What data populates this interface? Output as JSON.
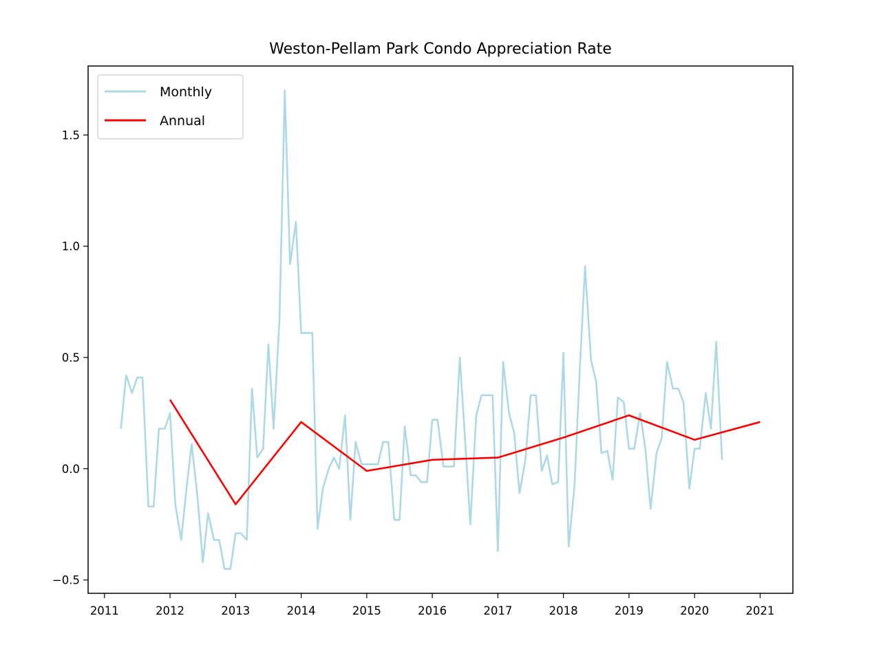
{
  "chart_data": {
    "type": "line",
    "title": "Weston-Pellam Park Condo Appreciation Rate",
    "xlabel": "",
    "ylabel": "",
    "xlim": [
      2010.75,
      2021.5
    ],
    "ylim": [
      -0.56,
      1.81
    ],
    "x_ticks": [
      "2011",
      "2012",
      "2013",
      "2014",
      "2015",
      "2016",
      "2017",
      "2018",
      "2019",
      "2020",
      "2021"
    ],
    "y_ticks": [
      "−0.5",
      "0.0",
      "0.5",
      "1.0",
      "1.5"
    ],
    "grid": false,
    "legend_position": "top-left",
    "series": [
      {
        "name": "Monthly",
        "color": "#add8e6",
        "points": [
          [
            2011.25,
            0.18
          ],
          [
            2011.33,
            0.42
          ],
          [
            2011.42,
            0.34
          ],
          [
            2011.5,
            0.41
          ],
          [
            2011.58,
            0.41
          ],
          [
            2011.67,
            -0.17
          ],
          [
            2011.75,
            -0.17
          ],
          [
            2011.83,
            0.18
          ],
          [
            2011.92,
            0.18
          ],
          [
            2012.0,
            0.25
          ],
          [
            2012.08,
            -0.16
          ],
          [
            2012.17,
            -0.32
          ],
          [
            2012.25,
            -0.09
          ],
          [
            2012.33,
            0.11
          ],
          [
            2012.42,
            -0.13
          ],
          [
            2012.5,
            -0.42
          ],
          [
            2012.58,
            -0.2
          ],
          [
            2012.67,
            -0.32
          ],
          [
            2012.75,
            -0.32
          ],
          [
            2012.83,
            -0.45
          ],
          [
            2012.92,
            -0.45
          ],
          [
            2013.0,
            -0.29
          ],
          [
            2013.08,
            -0.29
          ],
          [
            2013.17,
            -0.32
          ],
          [
            2013.25,
            0.36
          ],
          [
            2013.33,
            0.05
          ],
          [
            2013.42,
            0.09
          ],
          [
            2013.5,
            0.56
          ],
          [
            2013.58,
            0.18
          ],
          [
            2013.67,
            0.68
          ],
          [
            2013.75,
            1.7
          ],
          [
            2013.83,
            0.92
          ],
          [
            2013.92,
            1.11
          ],
          [
            2014.0,
            0.61
          ],
          [
            2014.08,
            0.61
          ],
          [
            2014.17,
            0.61
          ],
          [
            2014.25,
            -0.27
          ],
          [
            2014.33,
            -0.09
          ],
          [
            2014.42,
            0.0
          ],
          [
            2014.5,
            0.05
          ],
          [
            2014.58,
            0.0
          ],
          [
            2014.67,
            0.24
          ],
          [
            2014.75,
            -0.23
          ],
          [
            2014.83,
            0.12
          ],
          [
            2014.92,
            0.02
          ],
          [
            2015.0,
            0.02
          ],
          [
            2015.08,
            0.02
          ],
          [
            2015.17,
            0.02
          ],
          [
            2015.25,
            0.12
          ],
          [
            2015.33,
            0.12
          ],
          [
            2015.42,
            -0.23
          ],
          [
            2015.5,
            -0.23
          ],
          [
            2015.58,
            0.19
          ],
          [
            2015.67,
            -0.03
          ],
          [
            2015.75,
            -0.03
          ],
          [
            2015.83,
            -0.06
          ],
          [
            2015.92,
            -0.06
          ],
          [
            2016.0,
            0.22
          ],
          [
            2016.08,
            0.22
          ],
          [
            2016.17,
            0.01
          ],
          [
            2016.25,
            0.01
          ],
          [
            2016.33,
            0.01
          ],
          [
            2016.42,
            0.5
          ],
          [
            2016.5,
            0.13
          ],
          [
            2016.58,
            -0.25
          ],
          [
            2016.67,
            0.24
          ],
          [
            2016.75,
            0.33
          ],
          [
            2016.83,
            0.33
          ],
          [
            2016.92,
            0.33
          ],
          [
            2017.0,
            -0.37
          ],
          [
            2017.08,
            0.48
          ],
          [
            2017.17,
            0.25
          ],
          [
            2017.25,
            0.16
          ],
          [
            2017.33,
            -0.11
          ],
          [
            2017.42,
            0.04
          ],
          [
            2017.5,
            0.33
          ],
          [
            2017.58,
            0.33
          ],
          [
            2017.67,
            -0.01
          ],
          [
            2017.75,
            0.06
          ],
          [
            2017.83,
            -0.07
          ],
          [
            2017.92,
            -0.06
          ],
          [
            2018.0,
            0.52
          ],
          [
            2018.08,
            -0.35
          ],
          [
            2018.17,
            -0.07
          ],
          [
            2018.25,
            0.45
          ],
          [
            2018.33,
            0.91
          ],
          [
            2018.42,
            0.49
          ],
          [
            2018.5,
            0.39
          ],
          [
            2018.58,
            0.07
          ],
          [
            2018.67,
            0.08
          ],
          [
            2018.75,
            -0.05
          ],
          [
            2018.83,
            0.32
          ],
          [
            2018.92,
            0.3
          ],
          [
            2019.0,
            0.09
          ],
          [
            2019.08,
            0.09
          ],
          [
            2019.17,
            0.25
          ],
          [
            2019.25,
            0.09
          ],
          [
            2019.33,
            -0.18
          ],
          [
            2019.42,
            0.07
          ],
          [
            2019.5,
            0.14
          ],
          [
            2019.58,
            0.48
          ],
          [
            2019.67,
            0.36
          ],
          [
            2019.75,
            0.36
          ],
          [
            2019.83,
            0.3
          ],
          [
            2019.92,
            -0.09
          ],
          [
            2020.0,
            0.09
          ],
          [
            2020.08,
            0.09
          ],
          [
            2020.17,
            0.34
          ],
          [
            2020.25,
            0.18
          ],
          [
            2020.33,
            0.57
          ],
          [
            2020.42,
            0.04
          ]
        ]
      },
      {
        "name": "Annual",
        "color": "#ff0000",
        "points": [
          [
            2012.0,
            0.31
          ],
          [
            2013.0,
            -0.16
          ],
          [
            2014.0,
            0.21
          ],
          [
            2015.0,
            -0.01
          ],
          [
            2016.0,
            0.04
          ],
          [
            2017.0,
            0.05
          ],
          [
            2018.0,
            0.14
          ],
          [
            2019.0,
            0.24
          ],
          [
            2020.0,
            0.13
          ],
          [
            2021.0,
            0.21
          ]
        ]
      }
    ]
  }
}
